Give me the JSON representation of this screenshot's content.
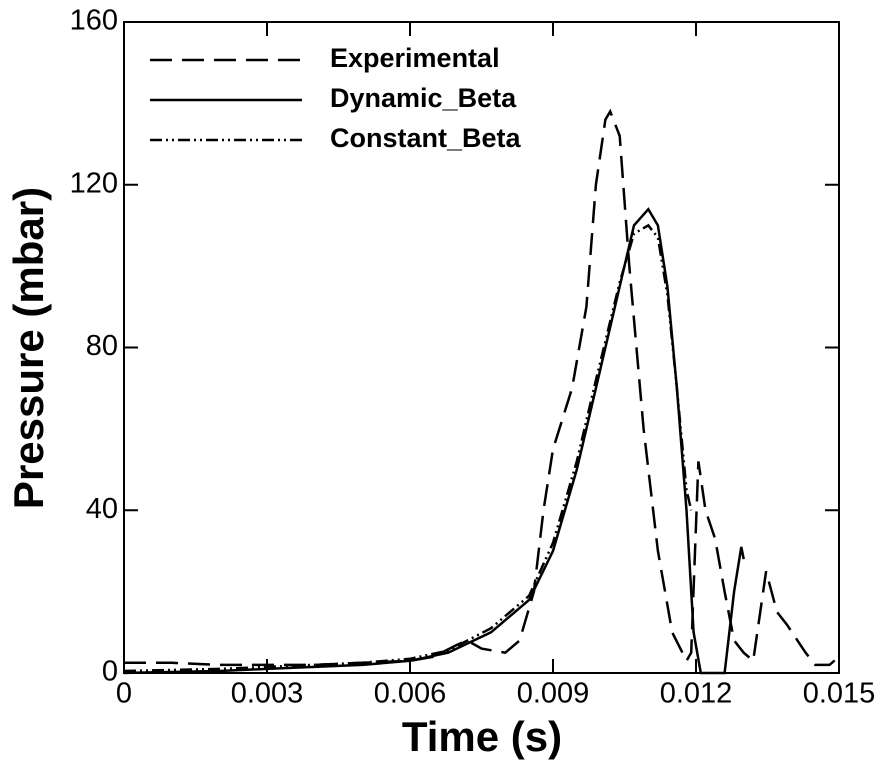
{
  "chart_data": {
    "type": "line",
    "x_label": "Time (s)",
    "y_label": "Pressure (mbar)",
    "xlim": [
      0,
      0.015
    ],
    "xticks": [
      0,
      0.003,
      0.006,
      0.009,
      0.012,
      0.015
    ],
    "ylim": [
      0,
      160
    ],
    "yticks": [
      0,
      40,
      80,
      120,
      160
    ],
    "legend": "top-left",
    "series": [
      {
        "name": "Experimental",
        "color": "#000000",
        "line_style": "dashed",
        "x": [
          0,
          0.001,
          0.002,
          0.003,
          0.004,
          0.005,
          0.006,
          0.0065,
          0.007,
          0.0072,
          0.0075,
          0.008,
          0.0083,
          0.0086,
          0.0088,
          0.009,
          0.0094,
          0.0097,
          0.0099,
          0.0101,
          0.0102,
          0.0104,
          0.0106,
          0.0109,
          0.0112,
          0.0115,
          0.0118,
          0.0119,
          0.01205,
          0.0122,
          0.0124,
          0.0126,
          0.0128,
          0.013,
          0.0132,
          0.01347,
          0.0137,
          0.0139,
          0.0143,
          0.0145,
          0.0148,
          0.015
        ],
        "values": [
          2.5,
          2.5,
          2,
          2,
          2,
          2.5,
          3,
          4,
          7,
          8,
          6,
          5,
          8,
          20,
          40,
          55,
          70,
          90,
          120,
          136,
          138,
          132,
          100,
          60,
          30,
          10,
          3,
          5,
          52,
          40,
          33,
          20,
          8,
          5,
          3,
          25,
          15,
          12,
          5,
          2,
          2,
          4
        ]
      },
      {
        "name": "Dynamic_Beta",
        "color": "#000000",
        "line_style": "solid",
        "x": [
          0,
          0.002,
          0.003,
          0.005,
          0.006,
          0.0068,
          0.0077,
          0.0085,
          0.009,
          0.0095,
          0.0099,
          0.0104,
          0.0107,
          0.011,
          0.0112,
          0.0114,
          0.0116,
          0.0118,
          0.01195,
          0.0121,
          0.0126,
          0.0128,
          0.01295,
          0.013
        ],
        "values": [
          0,
          0.5,
          1,
          2,
          3,
          5,
          10,
          18,
          30,
          50,
          70,
          95,
          110,
          114,
          110,
          95,
          70,
          40,
          10,
          0,
          0,
          20,
          31,
          28
        ]
      },
      {
        "name": "Constant_Beta",
        "color": "#000000",
        "line_style": "dashdotdot",
        "x": [
          0,
          0.002,
          0.003,
          0.005,
          0.006,
          0.0068,
          0.0077,
          0.0085,
          0.009,
          0.0095,
          0.0099,
          0.0104,
          0.0107,
          0.011,
          0.0112,
          0.0114,
          0.0116,
          0.0118,
          0.0119
        ],
        "values": [
          0.5,
          1,
          1.5,
          2.5,
          3.5,
          5.5,
          11,
          19,
          32,
          52,
          72,
          96,
          108,
          110,
          107,
          93,
          70,
          45,
          40
        ]
      }
    ]
  }
}
